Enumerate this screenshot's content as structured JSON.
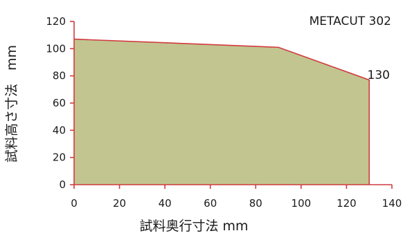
{
  "chart_data": {
    "type": "area",
    "title": "METACUT 302",
    "xlabel": "試料奥行寸法 mm",
    "ylabel": "試料高さ寸法　mm",
    "xlim": [
      0,
      140
    ],
    "ylim": [
      0,
      120
    ],
    "x_ticks": [
      0,
      20,
      40,
      60,
      80,
      100,
      120,
      140
    ],
    "y_ticks": [
      0,
      20,
      40,
      60,
      80,
      100,
      120
    ],
    "grid": false,
    "series": [
      {
        "points": [
          [
            0,
            107
          ],
          [
            90,
            101
          ],
          [
            130,
            77
          ],
          [
            130,
            0
          ]
        ],
        "fill_color": "#c2c58f",
        "line_color": "#d03a3f"
      }
    ],
    "annotations": [
      {
        "text": "130",
        "near": "right end of the boundary"
      }
    ]
  },
  "colors": {
    "axis": "#d03a3f",
    "fill": "#c2c58f",
    "boundary": "#d03a3f"
  }
}
